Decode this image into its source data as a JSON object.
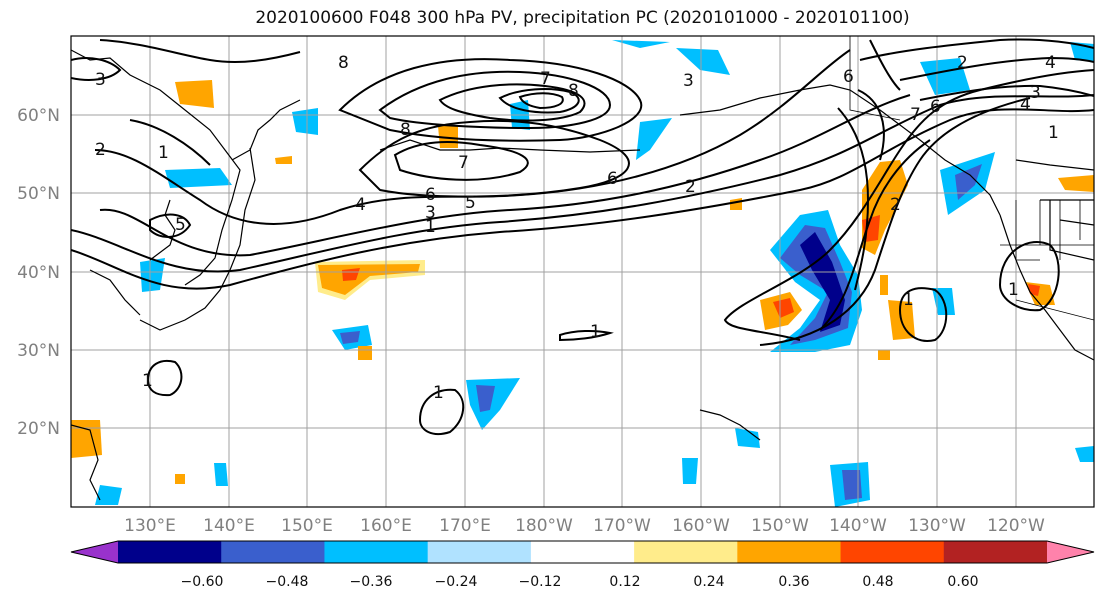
{
  "title": "2020100600 F048 300 hPa PV, precipitation PC (2020101000 - 2020101100)",
  "lat_labels": [
    "60°N",
    "50°N",
    "40°N",
    "30°N",
    "20°N"
  ],
  "lon_labels": [
    "130°E",
    "140°E",
    "150°E",
    "160°E",
    "170°E",
    "180°W",
    "170°W",
    "160°W",
    "150°W",
    "140°W",
    "130°W",
    "120°W"
  ],
  "colorbar": {
    "ticks": [
      "−0.60",
      "−0.48",
      "−0.36",
      "−0.24",
      "−0.12",
      "0.12",
      "0.24",
      "0.36",
      "0.48",
      "0.60"
    ],
    "colors": [
      "#9932cc",
      "#00008b",
      "#3a5fcd",
      "#00bfff",
      "#b0e2ff",
      "#ffffff",
      "#ffec8b",
      "#ffa500",
      "#ff4500",
      "#b22222",
      "#ff82ab"
    ]
  },
  "contour_labels": [
    "1",
    "1",
    "1",
    "1",
    "1",
    "1",
    "1",
    "1",
    "2",
    "2",
    "2",
    "2",
    "3",
    "3",
    "3",
    "3",
    "4",
    "4",
    "4",
    "5",
    "5",
    "6",
    "6",
    "6",
    "6",
    "7",
    "7",
    "7",
    "8",
    "8",
    "8"
  ]
}
